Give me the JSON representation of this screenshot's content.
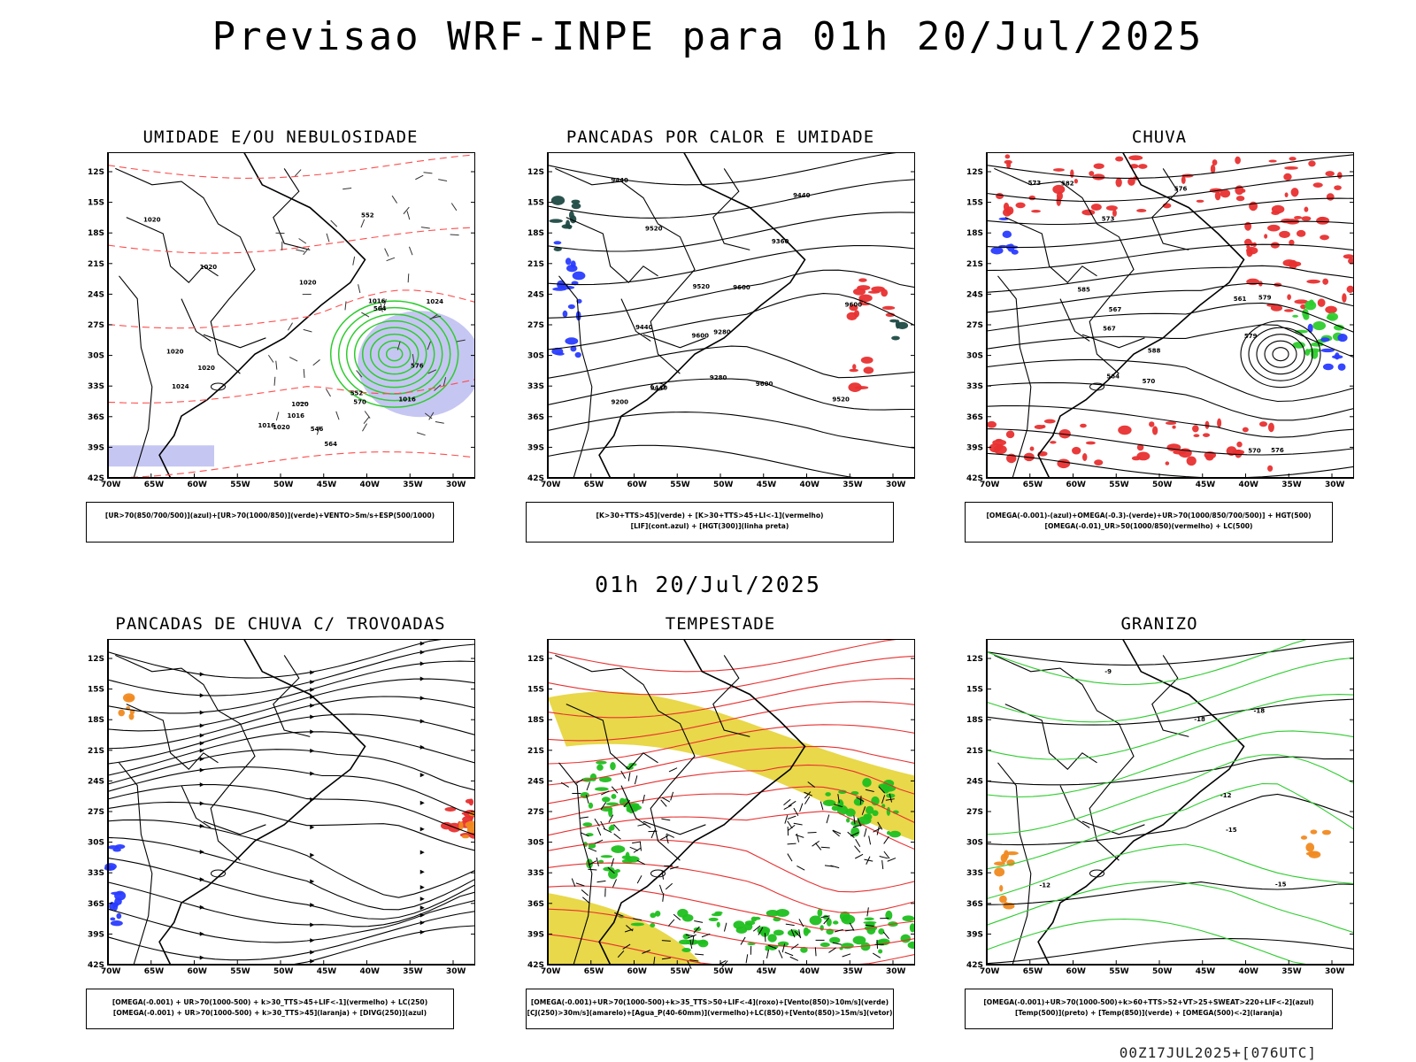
{
  "header": {
    "title": "Previsao WRF-INPE  para 01h 20/Jul/2025"
  },
  "mid_date": "01h 20/Jul/2025",
  "footer": "00Z17JUL2025+[076UTC]",
  "axes": {
    "lat": [
      "12S",
      "15S",
      "18S",
      "21S",
      "24S",
      "27S",
      "30S",
      "33S",
      "36S",
      "39S",
      "42S"
    ],
    "lon": [
      "70W",
      "65W",
      "60W",
      "55W",
      "50W",
      "45W",
      "40W",
      "35W",
      "30W"
    ]
  },
  "colors": {
    "green": "#2ecc2e",
    "red": "#e83030",
    "blue": "#2a3cff",
    "yellow": "#e8d84a",
    "orange": "#f08a20",
    "lavender": "#b8b8f0",
    "black": "#000000"
  },
  "panels": [
    {
      "id": "umidade",
      "title": "UMIDADE E/OU NEBULOSIDADE",
      "legend": [
        "[UR>70(850/700/500)](azul)+[UR>70(1000/850)](verde)+VENTO>5m/s+ESP(500/1000)"
      ],
      "contour_labels": [
        "1016",
        "1020",
        "1020",
        "1020",
        "1024",
        "1024",
        "1016",
        "1020",
        "1016",
        "1020",
        "1020",
        "1016",
        "1020",
        "564",
        "552",
        "546",
        "552",
        "570",
        "576",
        "564"
      ]
    },
    {
      "id": "pancadas-calor",
      "title": "PANCADAS POR CALOR E UMIDADE",
      "legend": [
        "[K>30+TTS>45](verde) + [K>30+TTS>45+LI<-1](vermelho)",
        "[LIF](cont.azul) + [HGT(300)](linha preta)"
      ],
      "contour_labels": [
        "9600",
        "9600",
        "9600",
        "9600",
        "9520",
        "9520",
        "9520",
        "9440",
        "9440",
        "9440",
        "9360",
        "9280",
        "9280",
        "9200",
        "9440"
      ]
    },
    {
      "id": "chuva",
      "title": "CHUVA",
      "legend": [
        "[OMEGA(-0.001)-(azul)+OMEGA(-0.3)-(verde)+UR>70(1000/850/700/500)] + HGT(500)",
        "[OMEGA(-0.01)_UR>50(1000/850)(vermelho) + LC(500)"
      ],
      "contour_labels": [
        "588",
        "585",
        "582",
        "579",
        "576",
        "573",
        "570",
        "567",
        "564",
        "561",
        "579",
        "576",
        "573",
        "570",
        "567"
      ]
    },
    {
      "id": "trovoadas",
      "title": "PANCADAS DE CHUVA C/ TROVOADAS",
      "legend": [
        "[OMEGA(-0.001) + UR>70(1000-500) + k>30_TTS>45+LIF<-1](vermelho) + LC(250)",
        "[OMEGA(-0.001) + UR>70(1000-500) + k>30_TTS>45](laranja) + [DIVG(250)](azul)"
      ],
      "contour_labels": []
    },
    {
      "id": "tempestade",
      "title": "TEMPESTADE",
      "legend": [
        "[OMEGA(-0.001)+UR>70(1000-500)+k>35_TTS>50+LIF<-4](roxo)+[Vento(850)>10m/s](verde)",
        "[CJ(250)>30m/s](amarelo)+[Agua_P(40-60mm)](vermelho)+LC(850)+[Vento(850)>15m/s](vetor)"
      ],
      "contour_labels": []
    },
    {
      "id": "granizo",
      "title": "GRANIZO",
      "legend": [
        "[OMEGA(-0.001)+UR>70(1000-500)+k>60+TTS>52+VT>25+SWEAT>220+LIF<-2](azul)",
        "[Temp(500)](preto) + [Temp(850)](verde) + [OMEGA(500)<-2](laranja)"
      ],
      "contour_labels": [
        "-12",
        "-15",
        "-18",
        "-12",
        "-15",
        "-18",
        "-9"
      ]
    }
  ]
}
